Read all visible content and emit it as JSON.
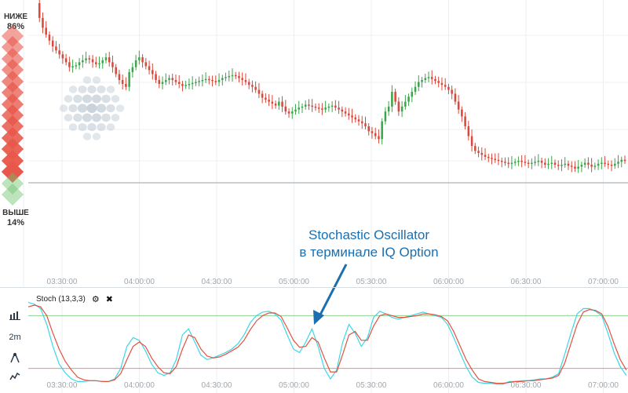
{
  "sidebar": {
    "down_label": "НИЖЕ",
    "down_percent": "86%",
    "up_label": "ВЫШЕ",
    "up_percent": "14%",
    "down_color": "#e8574a",
    "up_color": "#6cc46c",
    "down_share": 0.86
  },
  "time_axis": {
    "labels": [
      "03:30:00",
      "04:00:00",
      "04:30:00",
      "05:00:00",
      "05:30:00",
      "06:00:00",
      "06:30:00",
      "07:00:00"
    ]
  },
  "annotation": {
    "line1": "Stochastic Oscillator",
    "line2": "в терминале IQ Option",
    "color": "#1a6fb0"
  },
  "indicator": {
    "name": "Stoch (13,3,3)",
    "settings_icon": "gear-icon",
    "close_icon": "close-icon",
    "overbought_color": "#8fd18f",
    "oversold_color": "#ef8a80",
    "k_color": "#3dd6e6",
    "d_color": "#e0523f"
  },
  "toolbar": {
    "chart_type_icon": "candles-icon",
    "timeframe_label": "2m",
    "drawing_icon": "compass-icon",
    "indicator_icon": "wave-icon"
  },
  "colors": {
    "bull": "#3aa64a",
    "bear": "#d9483b",
    "grid": "#eceff2"
  },
  "chart_data": {
    "type": "candlestick",
    "x_unit": "time",
    "timeframe": "2m",
    "price": {
      "close_series": [
        40,
        55,
        65,
        72,
        78,
        84,
        88,
        92,
        96,
        100,
        105,
        104,
        103,
        100,
        98,
        96,
        97,
        100,
        102,
        101,
        98,
        95,
        100,
        105,
        112,
        118,
        122,
        125,
        110,
        105,
        98,
        95,
        100,
        104,
        108,
        112,
        118,
        122,
        120,
        118,
        116,
        118,
        120,
        122,
        124,
        123,
        122,
        121,
        120,
        119,
        118,
        117,
        118,
        119,
        120,
        118,
        116,
        115,
        114,
        113,
        114,
        116,
        118,
        120,
        123,
        125,
        128,
        132,
        136,
        138,
        140,
        142,
        144,
        140,
        145,
        150,
        152,
        150,
        148,
        146,
        145,
        143,
        144,
        145,
        146,
        147,
        148,
        146,
        145,
        144,
        146,
        148,
        150,
        152,
        154,
        156,
        158,
        160,
        162,
        165,
        170,
        172,
        175,
        178,
        160,
        150,
        145,
        130,
        140,
        150,
        145,
        140,
        135,
        130,
        125,
        120,
        118,
        116,
        115,
        117,
        119,
        121,
        123,
        125,
        128,
        132,
        140,
        148,
        155,
        165,
        175,
        185,
        190,
        192,
        194,
        196,
        197,
        198,
        199,
        200,
        201,
        202,
        203,
        202,
        201,
        200,
        201,
        202,
        203,
        202,
        201,
        200,
        202,
        204,
        203,
        202,
        204,
        205,
        204,
        203,
        205,
        206,
        208,
        206,
        204,
        202,
        204,
        206,
        205,
        203,
        202,
        203,
        204,
        205,
        203,
        201,
        199,
        200
      ]
    },
    "stochastic": {
      "params": "13,3,3",
      "overbought": 80,
      "oversold": 20,
      "k": [
        95,
        93,
        88,
        70,
        45,
        25,
        15,
        8,
        5,
        5,
        6,
        6,
        5,
        5,
        8,
        20,
        45,
        55,
        52,
        40,
        25,
        15,
        12,
        15,
        30,
        58,
        65,
        50,
        35,
        30,
        32,
        35,
        38,
        42,
        48,
        58,
        72,
        80,
        84,
        85,
        82,
        75,
        58,
        42,
        38,
        50,
        65,
        45,
        20,
        8,
        18,
        50,
        70,
        60,
        45,
        55,
        78,
        85,
        82,
        78,
        76,
        78,
        80,
        82,
        84,
        82,
        80,
        78,
        70,
        55,
        38,
        22,
        10,
        4,
        3,
        3,
        2,
        2,
        5,
        5,
        6,
        6,
        7,
        8,
        8,
        10,
        14,
        36,
        60,
        82,
        88,
        88,
        85,
        80,
        60,
        38,
        22,
        12
      ],
      "d": [
        90,
        92,
        90,
        80,
        60,
        42,
        28,
        18,
        10,
        7,
        6,
        6,
        5,
        5,
        7,
        14,
        30,
        45,
        50,
        45,
        32,
        22,
        15,
        14,
        22,
        42,
        58,
        55,
        42,
        34,
        32,
        33,
        36,
        40,
        44,
        52,
        64,
        74,
        80,
        83,
        83,
        79,
        66,
        52,
        44,
        45,
        55,
        50,
        32,
        16,
        16,
        36,
        58,
        62,
        52,
        52,
        68,
        80,
        82,
        80,
        78,
        78,
        79,
        80,
        82,
        82,
        81,
        79,
        74,
        62,
        46,
        30,
        18,
        8,
        5,
        4,
        3,
        3,
        4,
        5,
        5,
        6,
        6,
        7,
        8,
        9,
        12,
        26,
        48,
        70,
        84,
        87,
        86,
        82,
        68,
        48,
        30,
        18
      ]
    }
  }
}
